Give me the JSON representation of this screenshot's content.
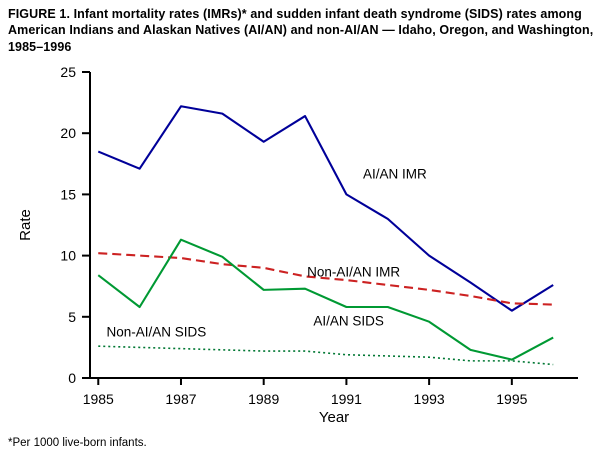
{
  "figure": {
    "title": "FIGURE 1. Infant mortality rates (IMRs)* and sudden infant death syndrome (SIDS) rates among American Indians and Alaskan Natives (AI/AN) and non-AI/AN — Idaho, Oregon, and Washington, 1985–1996",
    "footnote": "*Per 1000 live-born infants."
  },
  "chart_data": {
    "type": "line",
    "title": "",
    "xlabel": "Year",
    "ylabel": "Rate",
    "x": [
      1985,
      1986,
      1987,
      1988,
      1989,
      1990,
      1991,
      1992,
      1993,
      1994,
      1995,
      1996
    ],
    "xlim": [
      1984.8,
      1996.6
    ],
    "ylim": [
      0,
      25
    ],
    "yticks": [
      0,
      5,
      10,
      15,
      20,
      25
    ],
    "xticks": [
      1985,
      1987,
      1989,
      1991,
      1993,
      1995
    ],
    "grid": false,
    "legend": "inline-annotations",
    "series": [
      {
        "name": "AI/AN IMR",
        "color": "#000099",
        "line_style": "solid",
        "values": [
          18.5,
          17.1,
          22.2,
          21.6,
          19.3,
          21.4,
          15.0,
          13.0,
          10.0,
          7.8,
          5.5,
          7.6
        ]
      },
      {
        "name": "Non-AI/AN IMR",
        "color": "#cc2222",
        "line_style": "dashed",
        "values": [
          10.2,
          10.0,
          9.8,
          9.3,
          9.0,
          8.3,
          8.0,
          7.6,
          7.2,
          6.7,
          6.1,
          6.0
        ]
      },
      {
        "name": "AI/AN SIDS",
        "color": "#009933",
        "line_style": "solid",
        "values": [
          8.4,
          5.8,
          11.3,
          9.9,
          7.2,
          7.3,
          5.8,
          5.8,
          4.6,
          2.3,
          1.5,
          3.3
        ]
      },
      {
        "name": "Non-AI/AN SIDS",
        "color": "#007733",
        "line_style": "dotted",
        "values": [
          2.6,
          2.5,
          2.4,
          2.3,
          2.2,
          2.2,
          1.9,
          1.8,
          1.7,
          1.4,
          1.4,
          1.1
        ]
      }
    ],
    "annotations": [
      {
        "text": "AI/AN IMR",
        "x": 1991.4,
        "y": 16.3
      },
      {
        "text": "Non-AI/AN IMR",
        "x": 1990.05,
        "y": 8.3
      },
      {
        "text": "AI/AN SIDS",
        "x": 1990.2,
        "y": 4.3
      },
      {
        "text": "Non-AI/AN SIDS",
        "x": 1985.2,
        "y": 3.4
      }
    ]
  }
}
